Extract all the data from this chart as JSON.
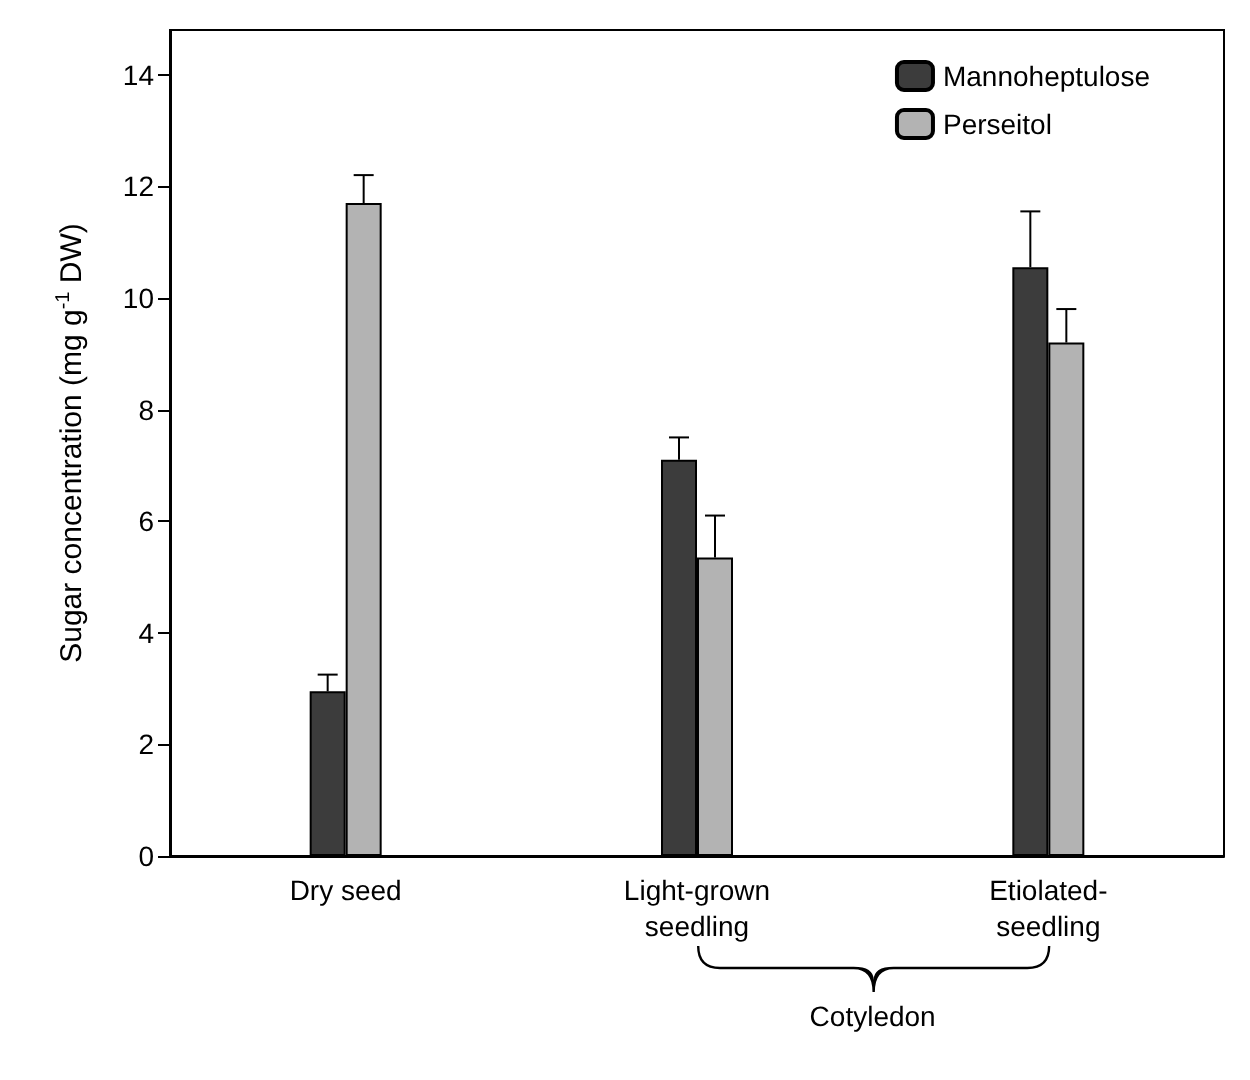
{
  "chart_data": {
    "type": "bar",
    "ylabel": "Sugar concentration (mg g$^{-1}$ DW)",
    "categories": [
      "Dry seed",
      "Light-grown\nseedling",
      "Etiolated-\nseedling"
    ],
    "series": [
      {
        "name": "Mannoheptulose",
        "color": "#3c3c3c",
        "values": [
          2.95,
          7.1,
          10.55
        ],
        "errors": [
          [
            2.95,
            3.25
          ],
          [
            7.1,
            7.5
          ],
          [
            10.55,
            11.55
          ]
        ]
      },
      {
        "name": "Perseitol",
        "color": "#b3b3b3",
        "values": [
          11.7,
          5.35,
          9.2
        ],
        "errors": [
          [
            11.7,
            12.2
          ],
          [
            5.35,
            6.1
          ],
          [
            9.2,
            9.8
          ]
        ]
      }
    ],
    "ylim": [
      0,
      14.8
    ],
    "yticks": [
      0,
      2,
      4,
      6,
      8,
      10,
      12,
      14
    ],
    "annotations": [
      {
        "text": "Cotyledon"
      }
    ],
    "grid": false,
    "legend": "top right"
  }
}
